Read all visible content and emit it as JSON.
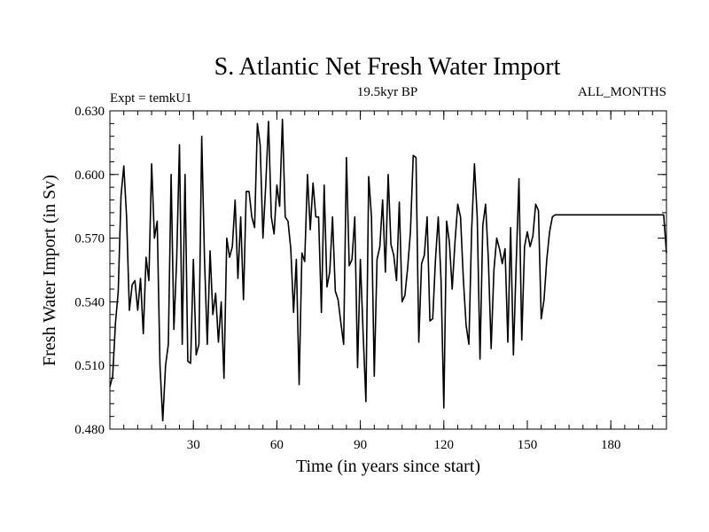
{
  "chart_data": {
    "type": "line",
    "title": "S. Atlantic Net Fresh Water Import",
    "subtitle": "19.5kyr BP",
    "annotation_left": "Expt = temkU1",
    "annotation_right": "ALL_MONTHS",
    "xlabel": "Time (in years since start)",
    "ylabel": "Fresh Water Import (in Sv)",
    "xlim": [
      0,
      200
    ],
    "ylim": [
      0.48,
      0.63
    ],
    "x_ticks": [
      30,
      60,
      90,
      120,
      150,
      180
    ],
    "x_tick_labels": [
      "30",
      "60",
      "90",
      "120",
      "150",
      "180"
    ],
    "y_ticks": [
      0.48,
      0.51,
      0.54,
      0.57,
      0.6,
      0.63
    ],
    "y_tick_labels": [
      "0.480",
      "0.510",
      "0.540",
      "0.570",
      "0.600",
      "0.630"
    ],
    "line_color": "#000000",
    "series": [
      {
        "name": "Fresh Water Import",
        "x": [
          0,
          1,
          2,
          3,
          4,
          5,
          6,
          7,
          8,
          9,
          10,
          11,
          12,
          13,
          14,
          15,
          16,
          17,
          18,
          19,
          20,
          21,
          22,
          23,
          24,
          25,
          26,
          27,
          28,
          29,
          30,
          31,
          32,
          33,
          34,
          35,
          36,
          37,
          38,
          39,
          40,
          41,
          42,
          43,
          44,
          45,
          46,
          47,
          48,
          49,
          50,
          51,
          52,
          53,
          54,
          55,
          56,
          57,
          58,
          59,
          60,
          61,
          62,
          63,
          64,
          65,
          66,
          67,
          68,
          69,
          70,
          71,
          72,
          73,
          74,
          75,
          76,
          77,
          78,
          79,
          80,
          81,
          82,
          83,
          84,
          85,
          86,
          87,
          88,
          89,
          90,
          91,
          92,
          93,
          94,
          95,
          96,
          97,
          98,
          99,
          100,
          101,
          102,
          103,
          104,
          105,
          106,
          107,
          108,
          109,
          110,
          111,
          112,
          113,
          114,
          115,
          116,
          117,
          118,
          119,
          120,
          121,
          122,
          123,
          124,
          125,
          126,
          127,
          128,
          129,
          130,
          131,
          132,
          133,
          134,
          135,
          136,
          137,
          138,
          139,
          140,
          141,
          142,
          143,
          144,
          145,
          146,
          147,
          148,
          149,
          150,
          151,
          152,
          153,
          154,
          155,
          156,
          157,
          158,
          159,
          160,
          170,
          180,
          190,
          199,
          200
        ],
        "values": [
          0.5,
          0.505,
          0.53,
          0.545,
          0.59,
          0.604,
          0.58,
          0.536,
          0.548,
          0.55,
          0.536,
          0.551,
          0.525,
          0.561,
          0.55,
          0.605,
          0.57,
          0.578,
          0.51,
          0.484,
          0.51,
          0.52,
          0.6,
          0.527,
          0.56,
          0.614,
          0.52,
          0.6,
          0.512,
          0.511,
          0.56,
          0.515,
          0.52,
          0.618,
          0.56,
          0.52,
          0.564,
          0.534,
          0.544,
          0.521,
          0.54,
          0.504,
          0.57,
          0.561,
          0.566,
          0.588,
          0.551,
          0.58,
          0.541,
          0.592,
          0.592,
          0.58,
          0.575,
          0.624,
          0.614,
          0.57,
          0.595,
          0.625,
          0.58,
          0.572,
          0.595,
          0.585,
          0.626,
          0.58,
          0.578,
          0.565,
          0.535,
          0.56,
          0.501,
          0.563,
          0.559,
          0.6,
          0.574,
          0.596,
          0.58,
          0.58,
          0.535,
          0.595,
          0.547,
          0.554,
          0.58,
          0.545,
          0.541,
          0.53,
          0.52,
          0.608,
          0.557,
          0.56,
          0.58,
          0.509,
          0.56,
          0.525,
          0.493,
          0.599,
          0.58,
          0.505,
          0.56,
          0.566,
          0.588,
          0.554,
          0.6,
          0.567,
          0.562,
          0.55,
          0.587,
          0.54,
          0.543,
          0.556,
          0.573,
          0.609,
          0.608,
          0.521,
          0.558,
          0.562,
          0.58,
          0.531,
          0.532,
          0.56,
          0.58,
          0.55,
          0.49,
          0.578,
          0.568,
          0.546,
          0.568,
          0.586,
          0.58,
          0.551,
          0.529,
          0.52,
          0.574,
          0.605,
          0.58,
          0.513,
          0.576,
          0.586,
          0.56,
          0.518,
          0.555,
          0.57,
          0.565,
          0.558,
          0.565,
          0.521,
          0.575,
          0.515,
          0.558,
          0.598,
          0.522,
          0.566,
          0.573,
          0.566,
          0.571,
          0.586,
          0.583,
          0.532,
          0.541,
          0.56,
          0.573,
          0.58,
          0.581,
          0.581,
          0.581,
          0.581,
          0.581,
          0.563
        ]
      }
    ]
  }
}
